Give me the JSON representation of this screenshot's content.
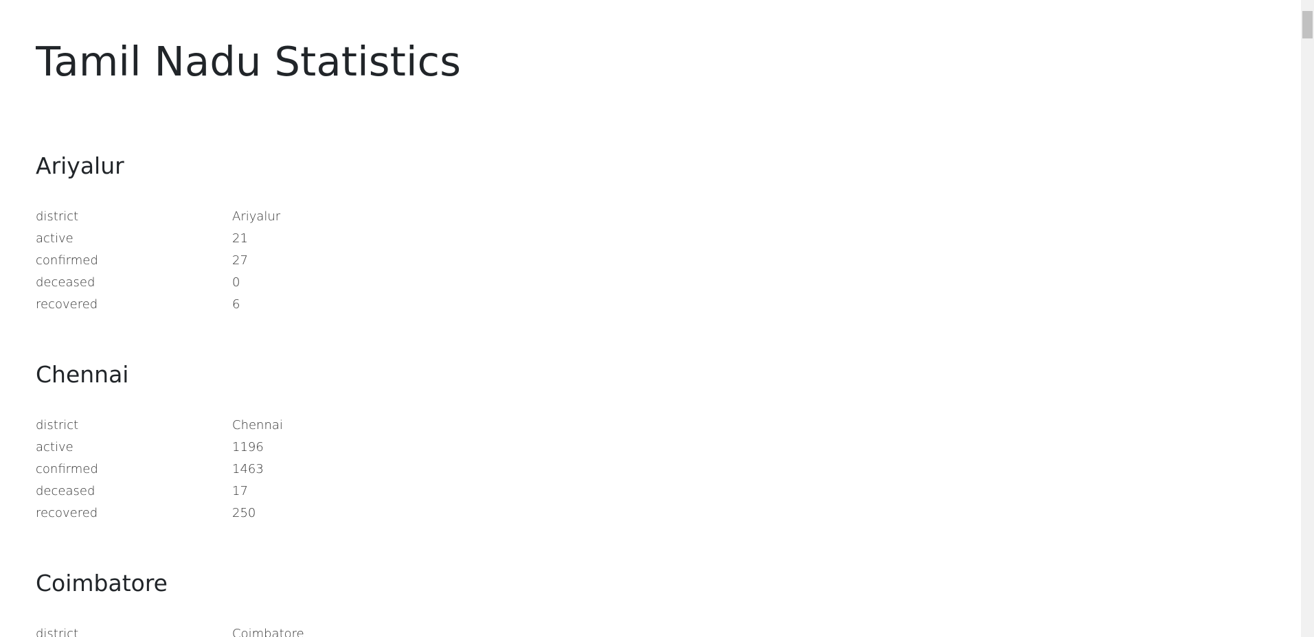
{
  "page": {
    "title": "Tamil Nadu Statistics"
  },
  "districts": [
    {
      "name": "Ariyalur",
      "rows": [
        {
          "key": "district",
          "value": "Ariyalur"
        },
        {
          "key": "active",
          "value": "21"
        },
        {
          "key": "confirmed",
          "value": "27"
        },
        {
          "key": "deceased",
          "value": "0"
        },
        {
          "key": "recovered",
          "value": "6"
        }
      ]
    },
    {
      "name": "Chennai",
      "rows": [
        {
          "key": "district",
          "value": "Chennai"
        },
        {
          "key": "active",
          "value": "1196"
        },
        {
          "key": "confirmed",
          "value": "1463"
        },
        {
          "key": "deceased",
          "value": "17"
        },
        {
          "key": "recovered",
          "value": "250"
        }
      ]
    },
    {
      "name": "Coimbatore",
      "rows": [
        {
          "key": "district",
          "value": "Coimbatore"
        }
      ]
    }
  ]
}
